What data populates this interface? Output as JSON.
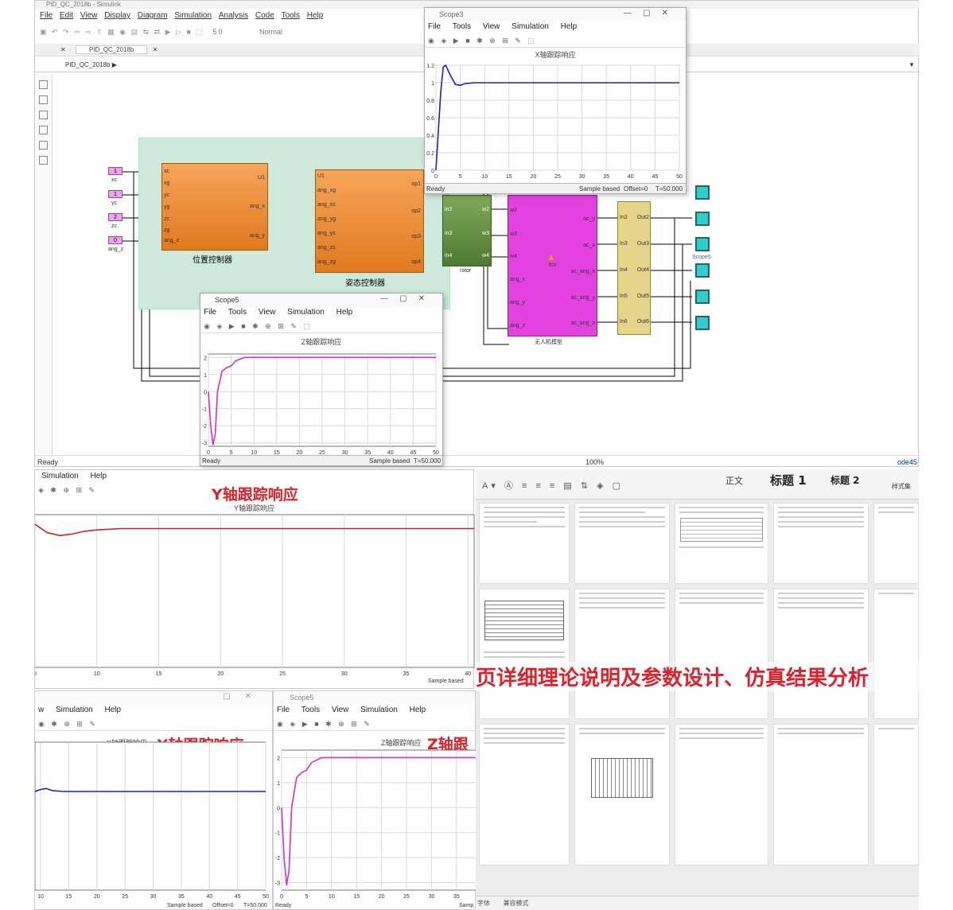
{
  "simulink": {
    "title": "PID_QC_2018b - Simulink",
    "menu": [
      "File",
      "Edit",
      "View",
      "Display",
      "Diagram",
      "Simulation",
      "Analysis",
      "Code",
      "Tools",
      "Help"
    ],
    "toolbar_fields": {
      "stop_time": "50",
      "mode": "Normal"
    },
    "tab": "PID_QC_2018b",
    "breadcrumb": "PID_QC_2018b",
    "status_left": "Ready",
    "status_zoom": "100%",
    "status_solver": "ode45",
    "inputs": [
      {
        "value": "1",
        "label": "xc"
      },
      {
        "value": "1",
        "label": "yc"
      },
      {
        "value": "2",
        "label": "zc"
      },
      {
        "value": "0",
        "label": "ang_z"
      }
    ],
    "pos_ctrl": {
      "name": "位置控制器",
      "ports_in": [
        "xc",
        "xg",
        "yc",
        "yg",
        "zc",
        "zg",
        "ang_z"
      ],
      "ports_out": [
        "U1",
        "ang_x",
        "ang_y"
      ]
    },
    "att_ctrl": {
      "name": "姿态控制器",
      "ports_in": [
        "U1",
        "ang_xg",
        "ang_xs",
        "ang_yg",
        "ang_ys",
        "ang_zs",
        "ang_zg"
      ],
      "ports_out": [
        "op1",
        "op2",
        "op3",
        "op4"
      ]
    },
    "rotor": {
      "name": "rotor",
      "ports_in": [
        "in2",
        "in3",
        "in4"
      ],
      "ports_out": [
        "w2",
        "w3",
        "w4"
      ]
    },
    "uav": {
      "name": "无人机模型",
      "center": "fcn",
      "ports_in": [
        "w2",
        "w3",
        "w4",
        "ang_x",
        "ang_y",
        "ang_z"
      ],
      "ports_out": [
        "ac_y",
        "ac_z",
        "ac_ang_x",
        "ac_ang_y",
        "ac_ang_z"
      ]
    },
    "demux": {
      "ports_in": [
        "In2",
        "In3",
        "In4",
        "In5",
        "In6"
      ],
      "ports_out": [
        "Out2",
        "Out3",
        "Out4",
        "Out5",
        "Out6"
      ]
    },
    "scope_label": "Scope5"
  },
  "scope3": {
    "title": "Scope3",
    "menu": [
      "File",
      "Tools",
      "View",
      "Simulation",
      "Help"
    ],
    "plot_title": "X轴跟踪响应",
    "status": [
      "Ready",
      "Sample based",
      "Offset=0",
      "T=50.000"
    ]
  },
  "scope5": {
    "title": "Scope5",
    "menu": [
      "File",
      "Tools",
      "View",
      "Simulation",
      "Help"
    ],
    "plot_title": "Z轴跟踪响应",
    "status": [
      "Ready",
      "Sample based",
      "T=50.000"
    ]
  },
  "panel_y": {
    "menu": [
      "Simulation",
      "Help"
    ],
    "overlay": "Y轴跟踪响应",
    "plot_title": "Y轴跟踪响应",
    "status": "Sample based"
  },
  "panel_x": {
    "menu": [
      "w",
      "Simulation",
      "Help"
    ],
    "overlay": "X轴跟踪响应",
    "plot_title": "X轴跟踪响应",
    "status": [
      "Sample based",
      "Offset=0",
      "T=50.000"
    ]
  },
  "panel_z": {
    "title": "Scope5",
    "menu": [
      "File",
      "Tools",
      "View",
      "Simulation",
      "Help"
    ],
    "overlay": "Z轴跟",
    "plot_title": "Z轴跟踪响应",
    "status": [
      "Ready",
      "Samp"
    ]
  },
  "doc": {
    "styles": [
      "正文",
      "标题 1",
      "标题 2",
      "样式集"
    ],
    "banner": "页详细理论说明及参数设计、仿真结果分析",
    "status": [
      "字体",
      "兼容模式"
    ]
  },
  "chart_data": [
    {
      "type": "line",
      "id": "scope3",
      "title": "X轴跟踪响应",
      "xlim": [
        0,
        50
      ],
      "ylim": [
        0,
        1.2
      ],
      "xticks": [
        0,
        5,
        10,
        15,
        20,
        25,
        30,
        35,
        40,
        45,
        50
      ],
      "yticks": [
        0,
        0.2,
        0.4,
        0.6,
        0.8,
        1,
        1.2
      ],
      "ytick_labels": [
        "0",
        "0.2",
        "0.4",
        "0.6",
        "0.8",
        "1",
        "1.2"
      ],
      "series": [
        {
          "color": "#2020c0",
          "x": [
            0,
            1,
            1.5,
            2,
            3,
            4,
            5,
            6,
            8,
            10,
            15,
            20,
            50
          ],
          "y": [
            0,
            0.9,
            1.18,
            1.2,
            1.08,
            0.98,
            0.97,
            0.99,
            1.0,
            1.0,
            1.0,
            1.0,
            1.0
          ]
        }
      ]
    },
    {
      "type": "line",
      "id": "scope5",
      "title": "Z轴跟踪响应",
      "xlim": [
        0,
        50
      ],
      "ylim": [
        -3.2,
        2.2
      ],
      "xticks": [
        0,
        5,
        10,
        15,
        20,
        25,
        30,
        35,
        40,
        45,
        50
      ],
      "yticks": [
        -3,
        -2,
        -1,
        0,
        1,
        2
      ],
      "ytick_labels": [
        "-3",
        "-2",
        "-1",
        "0",
        "1",
        "2"
      ],
      "series": [
        {
          "color": "#d030d0",
          "x": [
            0,
            0.5,
            1,
            1.5,
            2,
            3,
            4,
            5,
            6,
            8,
            10,
            50
          ],
          "y": [
            0,
            -2,
            -3.1,
            -2.5,
            0,
            1.2,
            1.4,
            1.5,
            1.8,
            2,
            2,
            2
          ]
        }
      ]
    },
    {
      "type": "line",
      "id": "ypanel",
      "title": "Y轴跟踪响应",
      "xlim": [
        5,
        40.5
      ],
      "ylim": [
        0,
        1.1
      ],
      "xticks": [
        5,
        10,
        15,
        20,
        25,
        30,
        35,
        40
      ],
      "yticks": [],
      "ytick_labels": [],
      "series": [
        {
          "color": "#d02020",
          "x": [
            5,
            6,
            7,
            8,
            9,
            10,
            12,
            15,
            40.5
          ],
          "y": [
            1.03,
            0.97,
            0.95,
            0.96,
            0.98,
            0.99,
            1.0,
            1.0,
            1.0
          ]
        }
      ]
    },
    {
      "type": "line",
      "id": "xpanel",
      "title": "X轴跟踪响应",
      "xlim": [
        9,
        50
      ],
      "ylim": [
        0,
        1.5
      ],
      "xticks": [
        10,
        15,
        20,
        25,
        30,
        35,
        40,
        45,
        50
      ],
      "yticks": [],
      "ytick_labels": [],
      "series": [
        {
          "color": "#2020c0",
          "x": [
            9,
            10,
            11,
            12,
            14,
            20,
            50
          ],
          "y": [
            1.0,
            1.02,
            1.03,
            1.01,
            1.0,
            1.0,
            1.0
          ]
        }
      ]
    },
    {
      "type": "line",
      "id": "zpanel",
      "title": "Z轴跟踪响应",
      "xlim": [
        0,
        39
      ],
      "ylim": [
        -3.3,
        2.3
      ],
      "xticks": [
        0,
        5,
        10,
        15,
        20,
        25,
        30,
        35
      ],
      "yticks": [
        -3,
        -2,
        -1,
        0,
        1,
        2
      ],
      "ytick_labels": [
        "-3",
        "-2",
        "-1",
        "0",
        "1",
        "2"
      ],
      "series": [
        {
          "color": "#d030d0",
          "x": [
            0,
            0.5,
            1,
            1.5,
            2,
            3,
            4,
            5,
            6,
            8,
            10,
            39
          ],
          "y": [
            0,
            -2,
            -3.1,
            -2.5,
            0,
            1.2,
            1.4,
            1.5,
            1.8,
            2,
            2,
            2
          ]
        }
      ]
    }
  ]
}
